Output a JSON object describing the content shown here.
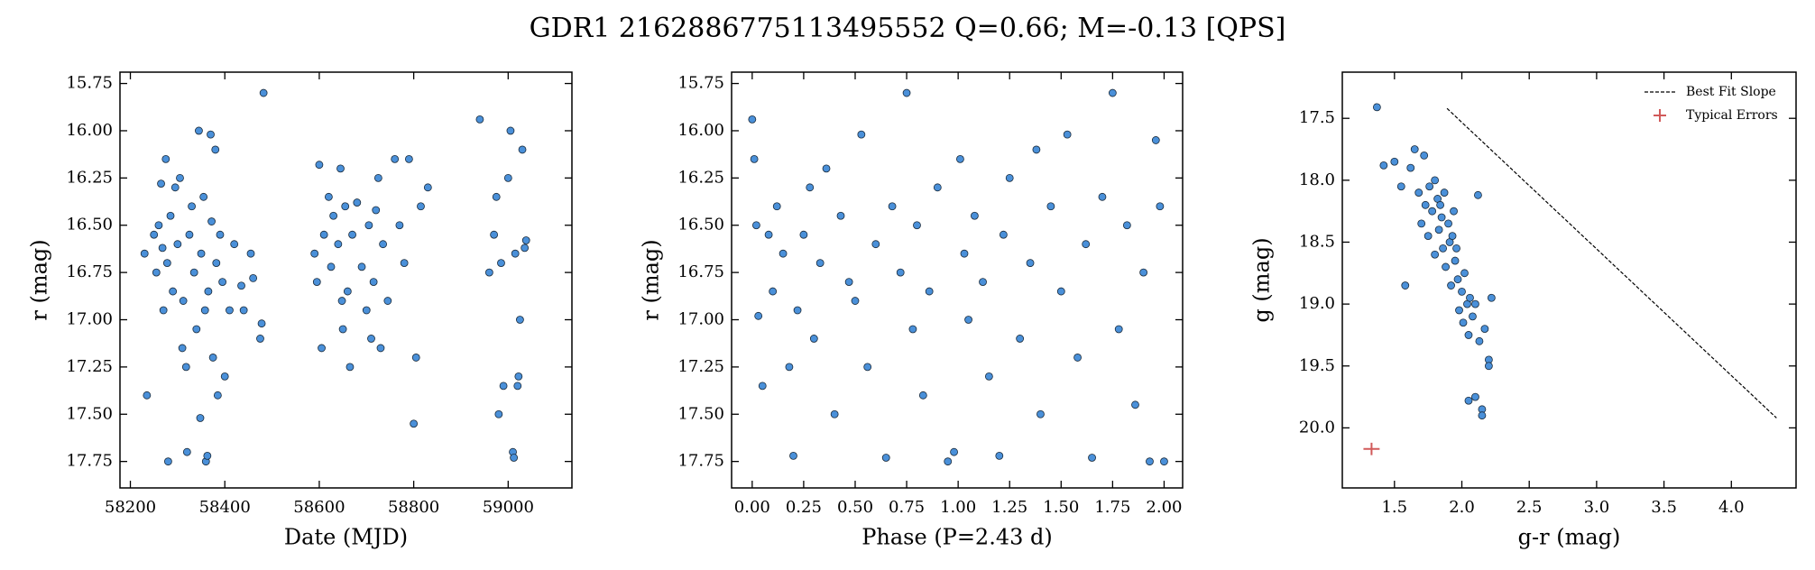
{
  "title": "GDR1 2162886775113495552  Q=0.66; M=-0.13 [QPS]",
  "chart_data": [
    {
      "type": "scatter",
      "xlabel": "Date (MJD)",
      "ylabel": "r (mag)",
      "color": "#4a90d9",
      "xlim": [
        58178,
        59135
      ],
      "ylim": [
        17.89,
        15.69
      ],
      "xticks": [
        58200,
        58400,
        58600,
        58800,
        59000
      ],
      "yticks": [
        15.75,
        {
          "value": 16.0,
          "label": "16.00"
        },
        16.25,
        {
          "value": 16.5,
          "label": "16.50"
        },
        16.75,
        {
          "value": 17.0,
          "label": "17.00"
        },
        17.25,
        {
          "value": 17.5,
          "label": "17.50"
        },
        17.75
      ],
      "x": [
        58230,
        58235,
        58250,
        58255,
        58260,
        58265,
        58268,
        58270,
        58275,
        58278,
        58280,
        58285,
        58290,
        58295,
        58300,
        58305,
        58310,
        58312,
        58318,
        58320,
        58325,
        58330,
        58335,
        58340,
        58345,
        58348,
        58350,
        58355,
        58358,
        58360,
        58363,
        58365,
        58370,
        58372,
        58375,
        58380,
        58382,
        58385,
        58390,
        58395,
        58400,
        58410,
        58420,
        58435,
        58440,
        58455,
        58460,
        58475,
        58478,
        58482,
        58590,
        58595,
        58600,
        58605,
        58610,
        58620,
        58625,
        58630,
        58640,
        58645,
        58648,
        58650,
        58655,
        58660,
        58665,
        58670,
        58680,
        58690,
        58700,
        58705,
        58710,
        58715,
        58720,
        58725,
        58730,
        58735,
        58745,
        58760,
        58770,
        58780,
        58790,
        58800,
        58805,
        58815,
        58830,
        58940,
        58960,
        58970,
        58975,
        58980,
        58985,
        58990,
        59000,
        59005,
        59010,
        59012,
        59015,
        59020,
        59022,
        59025,
        59030,
        59035,
        59038
      ],
      "values": [
        16.65,
        17.4,
        16.55,
        16.75,
        16.5,
        16.28,
        16.62,
        16.95,
        16.15,
        16.7,
        17.75,
        16.45,
        16.85,
        16.3,
        16.6,
        16.25,
        17.15,
        16.9,
        17.25,
        17.7,
        16.55,
        16.4,
        16.75,
        17.05,
        16.0,
        17.52,
        16.65,
        16.35,
        16.95,
        17.75,
        17.72,
        16.85,
        16.02,
        16.48,
        17.2,
        16.1,
        16.7,
        17.4,
        16.55,
        16.8,
        17.3,
        16.95,
        16.6,
        16.82,
        16.95,
        16.65,
        16.78,
        17.1,
        17.02,
        15.8,
        16.65,
        16.8,
        16.18,
        17.15,
        16.55,
        16.35,
        16.72,
        16.45,
        16.6,
        16.2,
        16.9,
        17.05,
        16.4,
        16.85,
        17.25,
        16.55,
        16.38,
        16.72,
        16.95,
        16.5,
        17.1,
        16.8,
        16.42,
        16.25,
        17.15,
        16.6,
        16.9,
        16.15,
        16.5,
        16.7,
        16.15,
        17.55,
        17.2,
        16.4,
        16.3,
        15.94,
        16.75,
        16.55,
        16.35,
        17.5,
        16.7,
        17.35,
        16.25,
        16.0,
        17.7,
        17.73,
        16.65,
        17.35,
        17.3,
        17.0,
        16.1,
        16.62,
        16.58
      ]
    },
    {
      "type": "scatter",
      "xlabel": "Phase (P=2.43 d)",
      "ylabel": "r (mag)",
      "color": "#4a90d9",
      "xlim": [
        -0.1,
        2.09
      ],
      "ylim": [
        17.89,
        15.69
      ],
      "xticks": [
        {
          "value": 0,
          "label": "0.00"
        },
        0.25,
        {
          "value": 0.5,
          "label": "0.50"
        },
        0.75,
        {
          "value": 1,
          "label": "1.00"
        },
        1.25,
        {
          "value": 1.5,
          "label": "1.50"
        },
        1.75,
        {
          "value": 2,
          "label": "2.00"
        }
      ],
      "yticks": [
        15.75,
        {
          "value": 16.0,
          "label": "16.00"
        },
        16.25,
        {
          "value": 16.5,
          "label": "16.50"
        },
        16.75,
        {
          "value": 17.0,
          "label": "17.00"
        },
        17.25,
        {
          "value": 17.5,
          "label": "17.50"
        },
        17.75
      ],
      "x": [
        0.0,
        0.01,
        0.02,
        0.03,
        0.05,
        0.08,
        0.1,
        0.12,
        0.15,
        0.18,
        0.2,
        0.22,
        0.25,
        0.28,
        0.3,
        0.33,
        0.36,
        0.4,
        0.43,
        0.47,
        0.5,
        0.53,
        0.56,
        0.6,
        0.65,
        0.68,
        0.72,
        0.75,
        0.78,
        0.8,
        0.83,
        0.86,
        0.9,
        0.95,
        0.98,
        1.01,
        1.03,
        1.05,
        1.08,
        1.12,
        1.15,
        1.2,
        1.22,
        1.25,
        1.3,
        1.35,
        1.38,
        1.4,
        1.45,
        1.5,
        1.53,
        1.58,
        1.62,
        1.65,
        1.7,
        1.75,
        1.78,
        1.82,
        1.86,
        1.9,
        1.93,
        1.96,
        1.98,
        2.0
      ],
      "values": [
        15.94,
        16.15,
        16.5,
        16.98,
        17.35,
        16.55,
        16.85,
        16.4,
        16.65,
        17.25,
        17.72,
        16.95,
        16.55,
        16.3,
        17.1,
        16.7,
        16.2,
        17.5,
        16.45,
        16.8,
        16.9,
        16.02,
        17.25,
        16.6,
        17.73,
        16.4,
        16.75,
        15.8,
        17.05,
        16.5,
        17.4,
        16.85,
        16.3,
        17.75,
        17.7,
        16.15,
        16.65,
        17.0,
        16.45,
        16.8,
        17.3,
        17.72,
        16.55,
        16.25,
        17.1,
        16.7,
        16.1,
        17.5,
        16.4,
        16.85,
        16.02,
        17.2,
        16.6,
        17.73,
        16.35,
        15.8,
        17.05,
        16.5,
        17.45,
        16.75,
        17.75,
        16.05,
        16.4,
        17.75
      ]
    },
    {
      "type": "scatter",
      "xlabel": "g-r (mag)",
      "ylabel": "g (mag)",
      "color": "#4a90d9",
      "xlim": [
        1.113,
        4.48
      ],
      "ylim": [
        20.485,
        17.127
      ],
      "xticks": [
        1.5,
        {
          "value": 2,
          "label": "2.0"
        },
        2.5,
        {
          "value": 3,
          "label": "3.0"
        },
        3.5,
        {
          "value": 4,
          "label": "4.0"
        }
      ],
      "yticks": [
        17.5,
        {
          "value": 18,
          "label": "18.0"
        },
        18.5,
        {
          "value": 19,
          "label": "19.0"
        },
        19.5,
        {
          "value": 20,
          "label": "20.0"
        }
      ],
      "x": [
        1.37,
        1.42,
        1.5,
        1.55,
        1.58,
        1.62,
        1.65,
        1.68,
        1.7,
        1.72,
        1.73,
        1.75,
        1.76,
        1.78,
        1.8,
        1.8,
        1.82,
        1.83,
        1.85,
        1.86,
        1.87,
        1.88,
        1.9,
        1.91,
        1.92,
        1.93,
        1.95,
        1.96,
        1.97,
        1.98,
        2.0,
        2.01,
        2.02,
        2.04,
        2.05,
        2.06,
        2.08,
        2.1,
        2.1,
        2.12,
        2.13,
        2.15,
        2.15,
        2.17,
        2.2,
        2.2,
        2.22,
        2.05,
        1.94,
        1.84
      ],
      "values": [
        17.41,
        17.88,
        17.85,
        18.05,
        18.85,
        17.9,
        17.75,
        18.1,
        18.35,
        17.8,
        18.2,
        18.45,
        18.05,
        18.25,
        18.6,
        18.0,
        18.15,
        18.4,
        18.3,
        18.55,
        18.1,
        18.7,
        18.35,
        18.5,
        18.85,
        18.45,
        18.65,
        18.55,
        18.8,
        19.05,
        18.9,
        19.15,
        18.75,
        19.0,
        19.25,
        18.95,
        19.1,
        19.0,
        19.75,
        18.12,
        19.3,
        19.85,
        19.9,
        19.2,
        19.45,
        19.5,
        18.95,
        19.78,
        18.25,
        18.2
      ],
      "fit_line": {
        "name": "Best Fit Slope",
        "x": [
          1.89,
          4.335
        ],
        "values": [
          17.42,
          19.92
        ],
        "color": "#000000"
      },
      "typical_errors": {
        "name": "Typical Errors",
        "x": 1.33,
        "y": 20.17,
        "xerr": 0.06,
        "yerr": 0.05,
        "color": "#d15a5a"
      },
      "legend": "upper right"
    }
  ]
}
